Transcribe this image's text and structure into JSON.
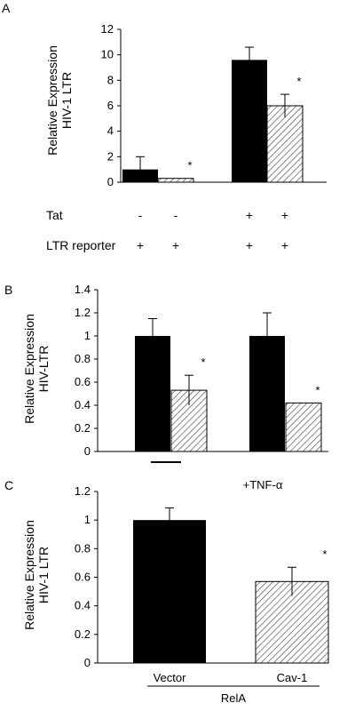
{
  "chart_data": [
    {
      "panel_label": "A",
      "type": "bar",
      "ylabel": [
        "Relative Expression",
        "HIV-1 LTR"
      ],
      "ylim": [
        0,
        12
      ],
      "yticks": [
        0,
        2,
        4,
        6,
        8,
        10,
        12
      ],
      "bars": [
        {
          "value": 1.0,
          "error": 1.0,
          "fill": "solid",
          "star": false
        },
        {
          "value": 0.3,
          "error": 0.0,
          "fill": "hatched",
          "star": true
        },
        {
          "value": 9.6,
          "error": 1.0,
          "fill": "solid",
          "star": false
        },
        {
          "value": 6.0,
          "error": 0.9,
          "fill": "hatched",
          "star": true
        }
      ],
      "condition_rows": [
        {
          "label": "Tat",
          "values": [
            "-",
            "-",
            "+",
            "+"
          ]
        },
        {
          "label": "LTR reporter",
          "values": [
            "+",
            "+",
            "+",
            "+"
          ]
        }
      ],
      "star_text": "*"
    },
    {
      "panel_label": "B",
      "type": "bar",
      "ylabel": [
        "Relative Expression",
        "HIV-LTR"
      ],
      "ylim": [
        0,
        1.4
      ],
      "yticks": [
        0,
        0.2,
        0.4,
        0.6,
        0.8,
        1,
        1.2,
        1.4
      ],
      "ytick_labels": [
        "0",
        "0.2",
        "0.4",
        "0.6",
        "0.8",
        "1",
        "1.2",
        "1.4"
      ],
      "bars": [
        {
          "value": 1.0,
          "error": 0.15,
          "fill": "solid",
          "star": false
        },
        {
          "value": 0.53,
          "error": 0.13,
          "fill": "hatched",
          "star": true
        },
        {
          "value": 1.0,
          "error": 0.2,
          "fill": "solid",
          "star": false
        },
        {
          "value": 0.42,
          "error": 0.0,
          "fill": "hatched",
          "star": true
        }
      ],
      "group_labels": [
        "",
        "+TNF-α"
      ],
      "star_text": "*"
    },
    {
      "panel_label": "C",
      "type": "bar",
      "ylabel": [
        "Relative Expression",
        "HIV-1 LTR"
      ],
      "ylim": [
        0,
        1.2
      ],
      "yticks": [
        0,
        0.2,
        0.4,
        0.6,
        0.8,
        1,
        1.2
      ],
      "ytick_labels": [
        "0",
        "0.2",
        "0.4",
        "0.6",
        "0.8",
        "1",
        "1.2"
      ],
      "categories": [
        "Vector",
        "Cav-1"
      ],
      "bars": [
        {
          "value": 1.0,
          "error": 0.085,
          "fill": "solid",
          "star": false
        },
        {
          "value": 0.57,
          "error": 0.1,
          "fill": "hatched",
          "star": true
        }
      ],
      "group_label": "RelA",
      "star_text": "*"
    }
  ]
}
